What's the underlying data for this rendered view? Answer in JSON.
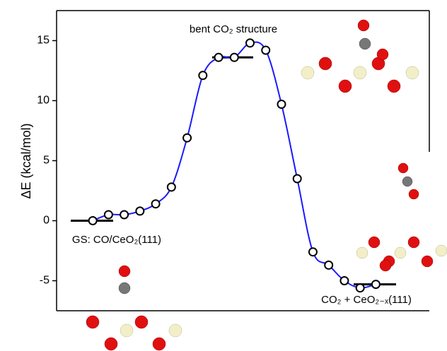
{
  "chart_data": {
    "type": "line",
    "y_label": "ΔE (kcal/mol)",
    "x": [
      0,
      1,
      2,
      3,
      4,
      5,
      6,
      7,
      8,
      9,
      10,
      11,
      12,
      13,
      14,
      15,
      16,
      17,
      18
    ],
    "series": [
      {
        "color": "#1a1aff",
        "values": [
          0,
          0.5,
          0.5,
          0.8,
          1.4,
          2.8,
          6.9,
          12.1,
          13.6,
          13.6,
          14.8,
          14.2,
          9.7,
          3.5,
          -2.6,
          -3.7,
          -5.0,
          -5.6,
          -5.3
        ]
      }
    ],
    "levels": [
      {
        "label": "GS: CO/CeO₂(111)",
        "value": 0
      },
      {
        "label": "bent CO₂ structure",
        "value": 13.6
      },
      {
        "label": "CO₂ + CeO₂₋ₓ(111)",
        "value": -5.3
      }
    ],
    "xlim": [
      -2.3,
      21.4
    ],
    "ylim": [
      -7.5,
      17.5
    ],
    "yticks": [
      -5,
      0,
      5,
      10,
      15
    ]
  }
}
